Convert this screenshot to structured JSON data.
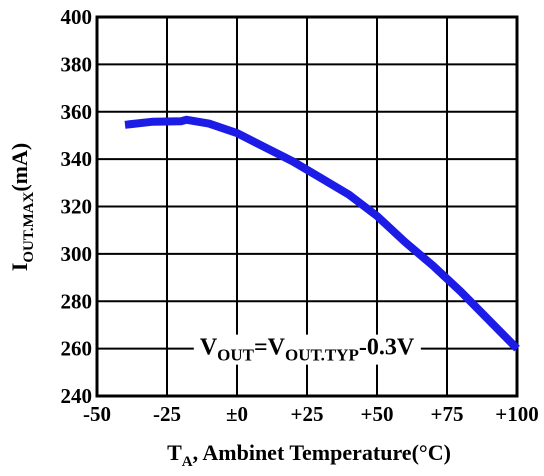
{
  "chart_data": {
    "type": "line",
    "x_ticks": [
      "-50",
      "-25",
      "±0",
      "+25",
      "+50",
      "+75",
      "+100"
    ],
    "y_ticks": [
      "240",
      "260",
      "280",
      "300",
      "320",
      "340",
      "360",
      "380",
      "400"
    ],
    "xlim": [
      -50,
      100
    ],
    "ylim": [
      240,
      400
    ],
    "grid": true,
    "xlabel": {
      "main": "T",
      "sub": "A",
      "rest": ", Ambinet Temperature(°C)"
    },
    "ylabel": {
      "main": "I",
      "sub": "OUT.MAX",
      "rest": "(mA)"
    },
    "annotation": {
      "v1": "V",
      "s1": "OUT",
      "mid": "=V",
      "s2": "OUT.TYP",
      "tail": "-0.3V",
      "x": 25,
      "y": 260
    },
    "line_color": "#1c1ce6",
    "series": [
      {
        "x": [
          -40,
          -30,
          -20,
          -18,
          -10,
          0,
          10,
          20,
          30,
          40,
          50,
          60,
          70,
          80,
          90,
          100
        ],
        "y": [
          354.5,
          355.8,
          356.0,
          356.6,
          355.0,
          351.0,
          345.0,
          339.0,
          332.0,
          325.0,
          316.0,
          305.0,
          295.0,
          284.0,
          272.0,
          260.0
        ]
      }
    ]
  }
}
